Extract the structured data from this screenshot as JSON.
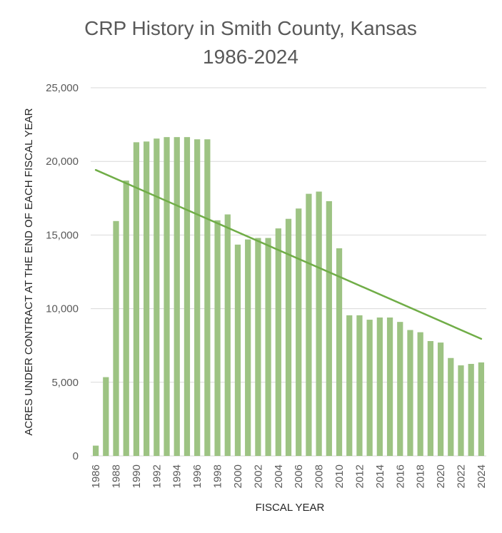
{
  "chart_data": {
    "type": "bar",
    "title": "CRP History in Smith County, Kansas",
    "subtitle": "1986-2024",
    "xlabel": "FISCAL YEAR",
    "ylabel": "ACRES UNDER CONTRACT AT THE END OF EACH FISCAL YEAR",
    "ylim": [
      0,
      25000
    ],
    "yticks": [
      "0",
      "5,000",
      "10,000",
      "15,000",
      "20,000",
      "25,000"
    ],
    "ytick_values": [
      0,
      5000,
      10000,
      15000,
      20000,
      25000
    ],
    "grid": true,
    "categories": [
      "1986",
      "1987",
      "1988",
      "1989",
      "1990",
      "1991",
      "1992",
      "1993",
      "1994",
      "1995",
      "1996",
      "1997",
      "1998",
      "1999",
      "2000",
      "2001",
      "2002",
      "2003",
      "2004",
      "2005",
      "2006",
      "2007",
      "2008",
      "2009",
      "2010",
      "2011",
      "2012",
      "2013",
      "2014",
      "2015",
      "2016",
      "2017",
      "2018",
      "2019",
      "2020",
      "2021",
      "2022",
      "2023",
      "2024"
    ],
    "xtick_labels": [
      "1986",
      "1988",
      "1990",
      "1992",
      "1994",
      "1996",
      "1998",
      "2000",
      "2002",
      "2004",
      "2006",
      "2008",
      "2010",
      "2012",
      "2014",
      "2016",
      "2018",
      "2020",
      "2022",
      "2024"
    ],
    "values": [
      700,
      5350,
      15950,
      18700,
      21300,
      21350,
      21550,
      21650,
      21650,
      21650,
      21500,
      21500,
      16000,
      16400,
      14350,
      14700,
      14800,
      14800,
      15450,
      16100,
      16800,
      17800,
      17950,
      17300,
      14100,
      9550,
      9550,
      9250,
      9400,
      9400,
      9100,
      8550,
      8400,
      7800,
      7700,
      6650,
      6150,
      6250,
      6350
    ],
    "trendline": {
      "type": "linear",
      "start": 19420,
      "end": 7950
    },
    "colors": {
      "bar": "#9dc383",
      "trend": "#70ad47",
      "grid": "#d9d9d9",
      "text": "#595959"
    }
  }
}
